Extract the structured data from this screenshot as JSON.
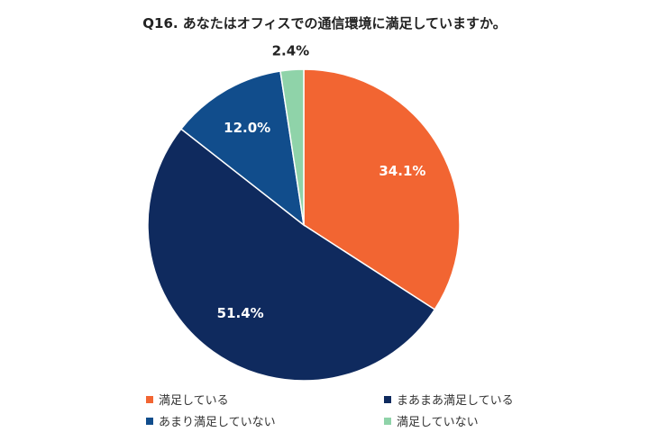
{
  "chart_data": {
    "type": "pie",
    "title": "Q16. あなたはオフィスでの通信環境に満足していますか。",
    "categories": [
      "満足している",
      "まあまあ満足している",
      "あまり満足していない",
      "満足していない"
    ],
    "values": [
      34.1,
      51.4,
      12.0,
      2.4
    ],
    "value_labels": [
      "34.1%",
      "51.4%",
      "12.0%",
      "2.4%"
    ],
    "colors": [
      "#f26532",
      "#0f2a5e",
      "#114d8c",
      "#8fd3a9"
    ],
    "label_colors": [
      "#ffffff",
      "#ffffff",
      "#ffffff",
      "#222222"
    ],
    "start_angle_deg": 0,
    "direction": "clockwise",
    "legend_position": "bottom"
  }
}
